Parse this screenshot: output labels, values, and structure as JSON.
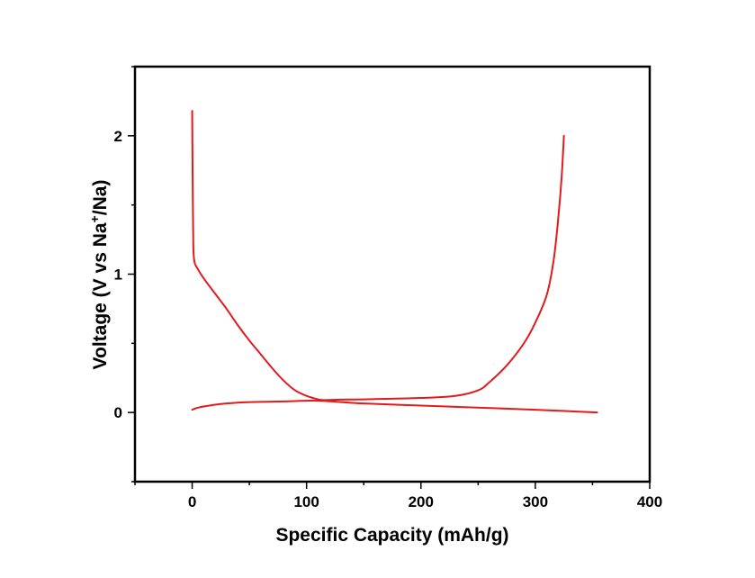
{
  "chart_data": {
    "type": "line",
    "xlabel": "Specific Capacity (mAh/g)",
    "ylabel": {
      "prefix": "Voltage (V vs Na",
      "superscript": "+",
      "suffix": "/Na)"
    },
    "xlim": [
      -50,
      400
    ],
    "ylim": [
      -0.5,
      2.5
    ],
    "xticks": [
      0,
      100,
      200,
      300,
      400
    ],
    "yticks": [
      0,
      1,
      2
    ],
    "x_minor_step": 50,
    "y_minor_step": 0.5,
    "grid": false,
    "legend": "none",
    "line_color": "#e31a1c",
    "series": [
      {
        "x": [
          354,
          300,
          250,
          200,
          150,
          110,
          80,
          50,
          30,
          15,
          5,
          0
        ],
        "y": [
          0.0,
          0.02,
          0.035,
          0.05,
          0.065,
          0.085,
          0.08,
          0.075,
          0.065,
          0.05,
          0.035,
          0.02
        ]
      },
      {
        "x": [
          0,
          0.5,
          1,
          2,
          4,
          10,
          20,
          30,
          40,
          50,
          60,
          70,
          80,
          90,
          100,
          110,
          115,
          130,
          150,
          200,
          230,
          250,
          260,
          275,
          290,
          300,
          310,
          316,
          320,
          323,
          325
        ],
        "y": [
          2.18,
          1.6,
          1.2,
          1.09,
          1.05,
          0.97,
          0.86,
          0.75,
          0.63,
          0.52,
          0.42,
          0.32,
          0.23,
          0.16,
          0.12,
          0.095,
          0.09,
          0.093,
          0.095,
          0.105,
          0.12,
          0.16,
          0.22,
          0.34,
          0.5,
          0.65,
          0.85,
          1.1,
          1.4,
          1.7,
          2.0
        ]
      }
    ]
  }
}
